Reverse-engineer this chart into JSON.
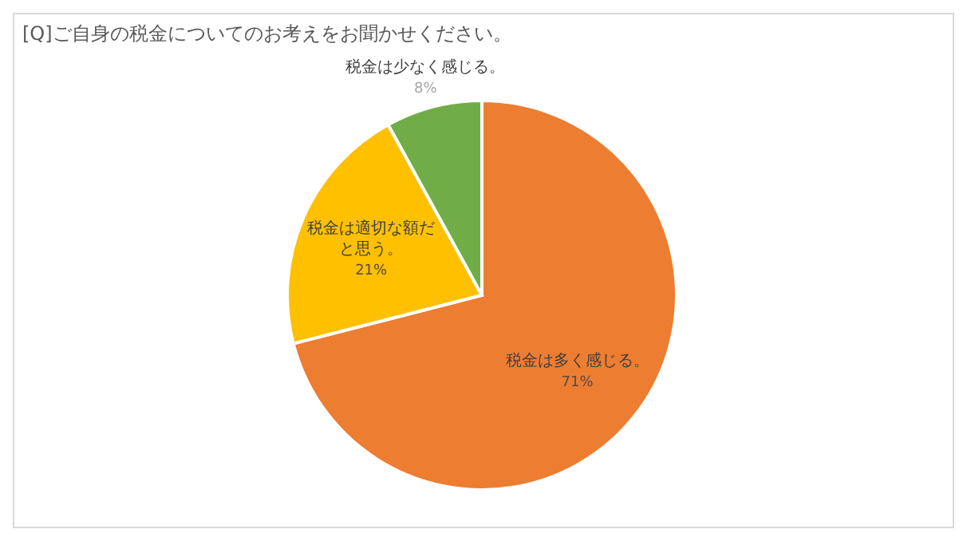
{
  "chart_data": {
    "type": "pie",
    "title": "[Q]ご自身の税金についてのお考えをお聞かせください。",
    "categories": [
      "税金は多く感じる。",
      "税金は適切な額だと思う。",
      "税金は少なく感じる。"
    ],
    "values": [
      71,
      21,
      8
    ],
    "value_labels": [
      "71%",
      "21%",
      "8%"
    ],
    "colors": [
      "#ed7d31",
      "#ffc000",
      "#70ad47"
    ]
  }
}
